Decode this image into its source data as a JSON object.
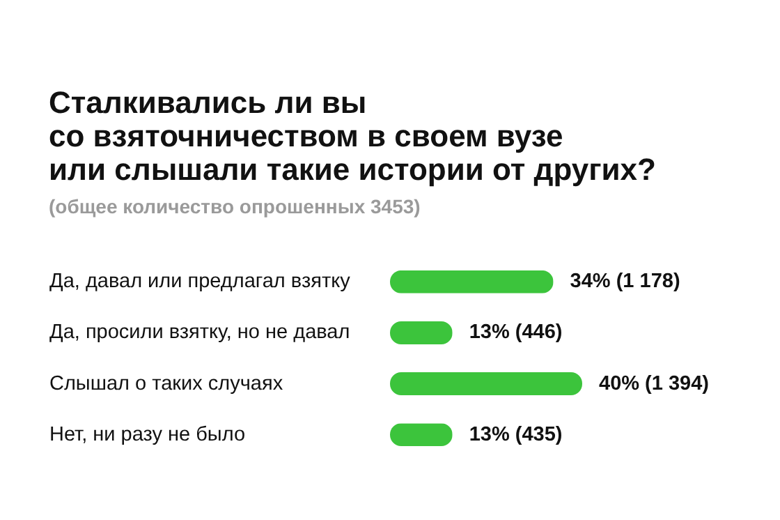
{
  "chart_data": {
    "type": "bar",
    "orientation": "horizontal",
    "title": "Сталкивались ли вы\nсо взяточничеством в своем вузе\nили слышали такие истории от других?",
    "subtitle": "(общее количество опрошенных 3453)",
    "categories": [
      "Да, давал или предлагал взятку",
      "Да, просили взятку, но не давал",
      "Слышал о таких случаях",
      "Нет, ни разу не было"
    ],
    "values": [
      34,
      13,
      40,
      13
    ],
    "value_labels": [
      "34% (1 178)",
      "13% (446)",
      "40% (1 394)",
      "13% (435)"
    ],
    "color": "#3cc43c",
    "grid": false
  }
}
